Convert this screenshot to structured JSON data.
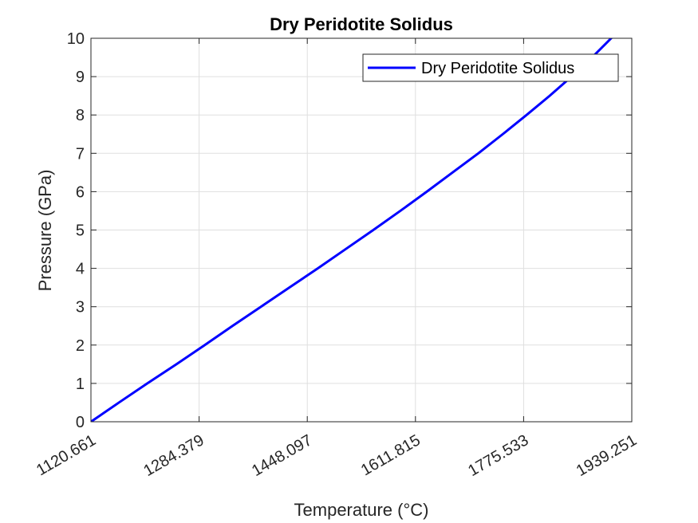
{
  "chart_data": {
    "type": "line",
    "title": "Dry Peridotite Solidus",
    "xlabel": "Temperature (°C)",
    "ylabel": "Pressure (GPa)",
    "xlim": [
      1120.661,
      1939.251
    ],
    "ylim": [
      0,
      10
    ],
    "xticks": [
      1120.661,
      1284.379,
      1448.097,
      1611.815,
      1775.533,
      1939.251
    ],
    "xtick_labels": [
      "1120.661",
      "1284.379",
      "1448.097",
      "1611.815",
      "1775.533",
      "1939.251"
    ],
    "yticks": [
      0,
      1,
      2,
      3,
      4,
      5,
      6,
      7,
      8,
      9,
      10
    ],
    "ytick_labels": [
      "0",
      "1",
      "2",
      "3",
      "4",
      "5",
      "6",
      "7",
      "8",
      "9",
      "10"
    ],
    "grid": true,
    "legend_position": "top-right",
    "series": [
      {
        "name": "Dry Peridotite Solidus",
        "color": "#0000ff",
        "x": [
          1120.661,
          1163,
          1206,
          1250,
          1293,
          1335,
          1378,
          1421,
          1464,
          1506,
          1548,
          1589,
          1629,
          1668,
          1707,
          1744,
          1780,
          1815,
          1848,
          1879,
          1908,
          1925,
          1939.251
        ],
        "y": [
          0,
          0.5,
          1.0,
          1.5,
          2.0,
          2.5,
          3.0,
          3.5,
          4.0,
          4.5,
          5.0,
          5.5,
          6.0,
          6.5,
          7.0,
          7.5,
          8.0,
          8.5,
          9.0,
          9.5,
          10.0,
          10.25,
          10.5
        ]
      }
    ]
  }
}
